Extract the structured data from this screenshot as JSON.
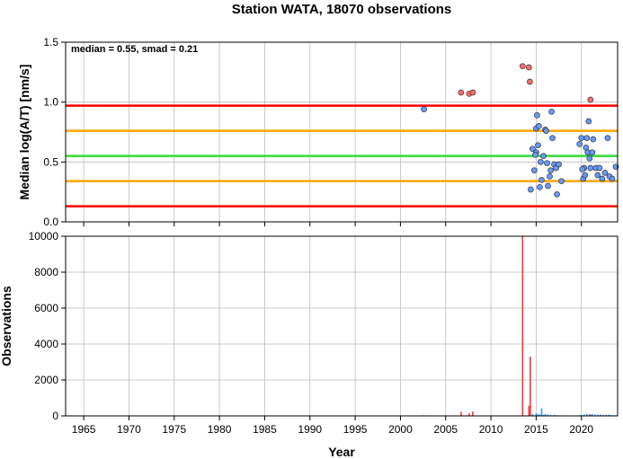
{
  "chart_data": {
    "title": "Station WATA, 18070 observations",
    "xlabel": "Year",
    "xlim": [
      1963,
      2024
    ],
    "x_ticks": [
      1965,
      1970,
      1975,
      1980,
      1985,
      1990,
      1995,
      2000,
      2005,
      2010,
      2015,
      2020
    ],
    "x_tick_labels": [
      "1965",
      "1970",
      "1975",
      "1980",
      "1985",
      "1990",
      "1995",
      "2000",
      "2005",
      "2010",
      "2015",
      "2020"
    ],
    "panels": [
      {
        "type": "scatter",
        "ylabel": "Median log(A/T) [nm/s]",
        "ylim": [
          0,
          1.5
        ],
        "y_ticks": [
          0,
          0.5,
          1,
          1.5
        ],
        "y_tick_labels": [
          "0.0",
          "0.5",
          "1.0",
          "1.5"
        ],
        "grid": true,
        "annotation": "median = 0.55, smad = 0.21",
        "reference_lines": [
          {
            "y": 0.55,
            "color": "#33dd33"
          },
          {
            "y": 0.76,
            "color": "#ffa500"
          },
          {
            "y": 0.34,
            "color": "#ffa500"
          },
          {
            "y": 0.97,
            "color": "#ff0000"
          },
          {
            "y": 0.13,
            "color": "#ff0000"
          }
        ],
        "series": [
          {
            "color": "#ff6b6b",
            "points": [
              [
                2006.7,
                1.08
              ],
              [
                2007.6,
                1.07
              ],
              [
                2008.0,
                1.08
              ],
              [
                2013.5,
                1.3
              ],
              [
                2014.2,
                1.29
              ],
              [
                2014.3,
                1.17
              ],
              [
                2021.0,
                1.02
              ]
            ]
          },
          {
            "color": "#6699ff",
            "points": [
              [
                2002.6,
                0.94
              ],
              [
                2014.4,
                0.27
              ],
              [
                2014.6,
                0.61
              ],
              [
                2014.8,
                0.43
              ],
              [
                2015.0,
                0.78
              ],
              [
                2015.1,
                0.89
              ],
              [
                2015.2,
                0.64
              ],
              [
                2015.3,
                0.8
              ],
              [
                2015.4,
                0.29
              ],
              [
                2015.6,
                0.35
              ],
              [
                2015.8,
                0.55
              ],
              [
                2016.0,
                0.77
              ],
              [
                2016.1,
                0.76
              ],
              [
                2016.2,
                0.49
              ],
              [
                2016.3,
                0.3
              ],
              [
                2016.5,
                0.38
              ],
              [
                2016.6,
                0.43
              ],
              [
                2016.7,
                0.92
              ],
              [
                2016.8,
                0.7
              ],
              [
                2017.0,
                0.48
              ],
              [
                2017.2,
                0.45
              ],
              [
                2017.3,
                0.23
              ],
              [
                2017.5,
                0.48
              ],
              [
                2017.8,
                0.34
              ],
              [
                2015.0,
                0.58
              ],
              [
                2014.9,
                0.56
              ],
              [
                2015.5,
                0.5
              ],
              [
                2019.8,
                0.65
              ],
              [
                2020.0,
                0.7
              ],
              [
                2020.2,
                0.36
              ],
              [
                2020.3,
                0.45
              ],
              [
                2020.4,
                0.39
              ],
              [
                2020.5,
                0.62
              ],
              [
                2020.6,
                0.7
              ],
              [
                2020.7,
                0.58
              ],
              [
                2020.8,
                0.84
              ],
              [
                2020.9,
                0.53
              ],
              [
                2021.0,
                0.45
              ],
              [
                2021.3,
                0.69
              ],
              [
                2021.6,
                0.45
              ],
              [
                2021.8,
                0.39
              ],
              [
                2022.0,
                0.45
              ],
              [
                2022.3,
                0.36
              ],
              [
                2022.6,
                0.41
              ],
              [
                2022.9,
                0.7
              ],
              [
                2023.1,
                0.38
              ],
              [
                2023.4,
                0.36
              ],
              [
                2023.8,
                0.46
              ],
              [
                2020.1,
                0.44
              ],
              [
                2021.2,
                0.58
              ]
            ]
          }
        ]
      },
      {
        "type": "bar",
        "ylabel": "Observations",
        "ylim": [
          0,
          10000
        ],
        "y_ticks": [
          0,
          2000,
          4000,
          6000,
          8000,
          10000
        ],
        "y_tick_labels": [
          "0",
          "2000",
          "4000",
          "6000",
          "8000",
          "10000"
        ],
        "grid": true,
        "series": [
          {
            "color": "#ff3333",
            "bars": [
              [
                2006.7,
                220
              ],
              [
                2007.6,
                130
              ],
              [
                2008.0,
                250
              ],
              [
                2013.5,
                10000
              ],
              [
                2014.2,
                560
              ],
              [
                2014.35,
                3300
              ],
              [
                2021.0,
                80
              ]
            ]
          },
          {
            "color": "#3399ff",
            "bars": [
              [
                2002.6,
                40
              ],
              [
                2014.6,
                120
              ],
              [
                2015.0,
                150
              ],
              [
                2015.2,
                90
              ],
              [
                2015.4,
                80
              ],
              [
                2015.6,
                420
              ],
              [
                2015.8,
                60
              ],
              [
                2016.0,
                100
              ],
              [
                2016.3,
                70
              ],
              [
                2016.6,
                50
              ],
              [
                2017.0,
                60
              ],
              [
                2017.3,
                40
              ],
              [
                2017.8,
                30
              ],
              [
                2018.5,
                20
              ],
              [
                2019.2,
                20
              ],
              [
                2019.8,
                40
              ],
              [
                2020.0,
                60
              ],
              [
                2020.3,
                80
              ],
              [
                2020.6,
                120
              ],
              [
                2020.9,
                90
              ],
              [
                2021.2,
                100
              ],
              [
                2021.5,
                70
              ],
              [
                2021.8,
                60
              ],
              [
                2022.1,
                80
              ],
              [
                2022.4,
                50
              ],
              [
                2022.7,
                60
              ],
              [
                2023.0,
                70
              ],
              [
                2023.3,
                50
              ],
              [
                2023.6,
                40
              ],
              [
                2023.9,
                30
              ]
            ]
          }
        ]
      }
    ]
  }
}
